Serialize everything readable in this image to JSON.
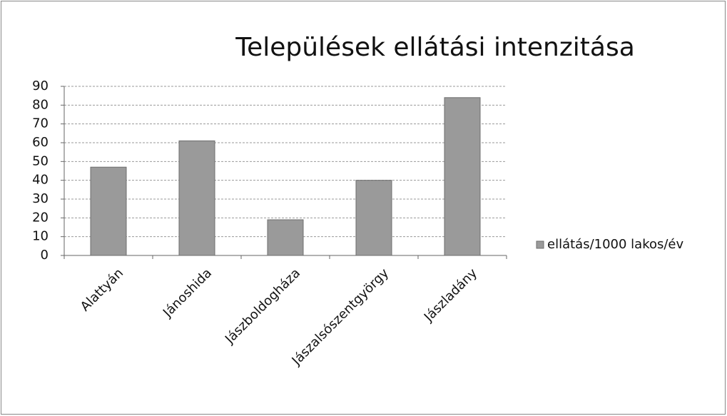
{
  "chart_data": {
    "type": "bar",
    "title": "Települések ellátási intenzitása",
    "categories": [
      "Alattyán",
      "Jánoshida",
      "Jászboldogháza",
      "Jászalsószentgyörgy",
      "Jászladány"
    ],
    "series": [
      {
        "name": "ellátás/1000 lakos/év",
        "color": "#9a9a9a",
        "values": [
          47,
          61,
          19,
          40,
          84
        ]
      }
    ],
    "ylim": [
      0,
      90
    ],
    "yticks": [
      0,
      10,
      20,
      30,
      40,
      50,
      60,
      70,
      80,
      90
    ],
    "grid": true,
    "legend": "right"
  }
}
